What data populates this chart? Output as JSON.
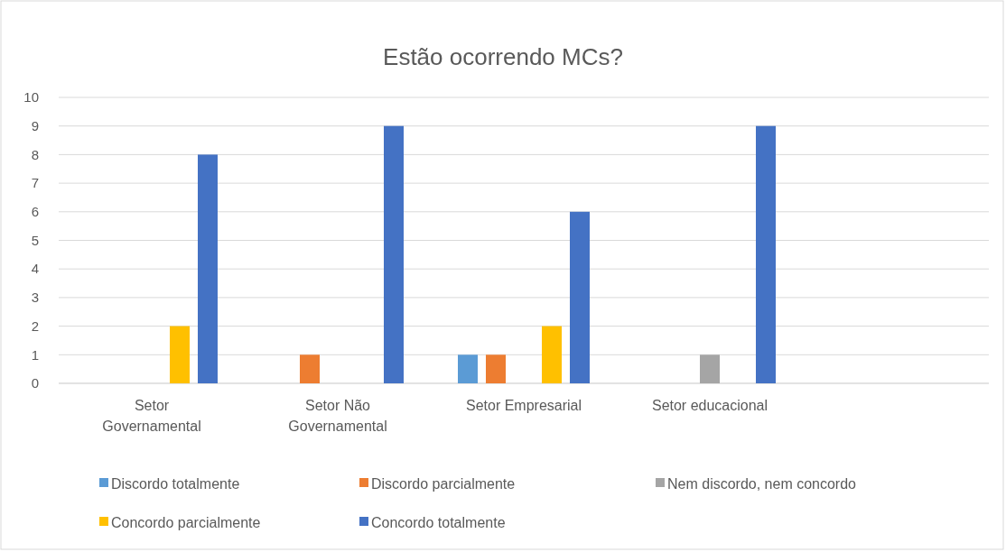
{
  "chart_data": {
    "type": "bar",
    "title": "Estão ocorrendo MCs?",
    "categories": [
      "Setor Governamental",
      "Setor Não Governamental",
      "Setor Empresarial",
      "Setor educacional",
      null
    ],
    "series": [
      {
        "name": "Discordo totalmente",
        "color": "#5b9bd5",
        "values": [
          null,
          null,
          1,
          null,
          null
        ]
      },
      {
        "name": "Discordo parcialmente",
        "color": "#ed7d31",
        "values": [
          null,
          1,
          1,
          null,
          null
        ]
      },
      {
        "name": "Nem discordo, nem concordo",
        "color": "#a5a5a5",
        "values": [
          null,
          null,
          null,
          1,
          null
        ]
      },
      {
        "name": "Concordo parcialmente",
        "color": "#ffc000",
        "values": [
          2,
          null,
          2,
          null,
          null
        ]
      },
      {
        "name": "Concordo totalmente",
        "color": "#4472c4",
        "values": [
          8,
          9,
          6,
          9,
          null
        ]
      }
    ],
    "ylim": [
      0,
      10
    ],
    "yticks": [
      0,
      1,
      2,
      3,
      4,
      5,
      6,
      7,
      8,
      9,
      10
    ],
    "grid": "y",
    "legend": "bottom"
  }
}
